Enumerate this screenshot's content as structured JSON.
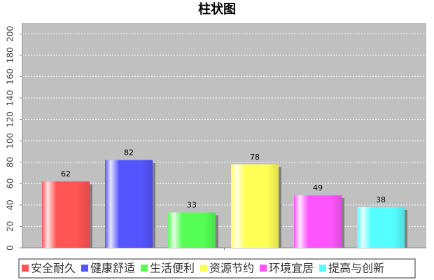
{
  "chart_data": {
    "type": "bar",
    "title": "柱状图",
    "categories": [
      null
    ],
    "series": [
      {
        "name": "安全耐久",
        "color": "#ff5555",
        "values": [
          62
        ]
      },
      {
        "name": "健康舒适",
        "color": "#5555ff",
        "values": [
          82
        ]
      },
      {
        "name": "生活便利",
        "color": "#55ff55",
        "values": [
          33
        ]
      },
      {
        "name": "资源节约",
        "color": "#ffff55",
        "values": [
          78
        ]
      },
      {
        "name": "环境宜居",
        "color": "#ff55ff",
        "values": [
          49
        ]
      },
      {
        "name": "提高与创新",
        "color": "#55ffff",
        "values": [
          38
        ]
      }
    ],
    "ylim": [
      0,
      210
    ],
    "yticks": [
      0,
      20,
      40,
      60,
      80,
      100,
      120,
      140,
      160,
      180,
      200
    ],
    "grid": true,
    "legend": "bottom"
  }
}
